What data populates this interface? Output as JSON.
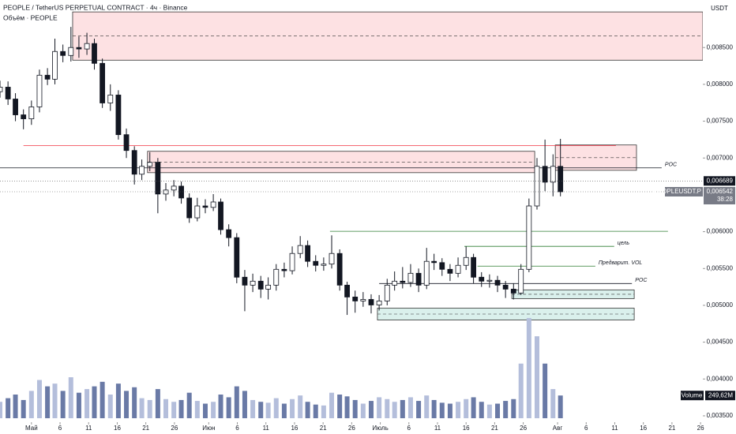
{
  "header": {
    "title": "PEOPLE / TetherUS PERPETUAL CONTRACT · 4ч · Binance",
    "indicator": "Объём · PEOPLE",
    "currency": "USDT"
  },
  "chart_data": {
    "type": "candlestick",
    "x": [
      -5.5,
      -4.1,
      -2.8,
      -1.4,
      0,
      1.4,
      2.8,
      4.1,
      5.5,
      6.9,
      8.3,
      9.7,
      11.0,
      12.4,
      13.8,
      15.2,
      16.6,
      18.0,
      19.3,
      20.7,
      22.1,
      23.5,
      24.9,
      26.2,
      27.6,
      29.0,
      30.4,
      31.8,
      33.1,
      34.5,
      35.9,
      37.3,
      38.7,
      40.1,
      41.4,
      42.8,
      44.2,
      45.6,
      47.0,
      48.3,
      49.7,
      51.1,
      52.5,
      53.9,
      55.2,
      56.6,
      58.0,
      59.4,
      60.8,
      62.2,
      63.5,
      64.9,
      66.3,
      67.7,
      69.1,
      70.4,
      71.8,
      73.2,
      74.6,
      76.0,
      77.3,
      78.7,
      80.1,
      81.5,
      82.9,
      84.3,
      85.6,
      87.0,
      88.4,
      89.8,
      91.2,
      92.5
    ],
    "open": [
      0.0079,
      0.007962,
      0.007801,
      0.007586,
      0.007532,
      0.007694,
      0.008124,
      0.00807,
      0.008446,
      0.008392,
      0.0085,
      0.00848,
      0.008554,
      0.008285,
      0.007747,
      0.007855,
      0.007317,
      0.007102,
      0.00678,
      0.006887,
      0.006941,
      0.006511,
      0.006565,
      0.006618,
      0.006457,
      0.006188,
      0.006349,
      0.00633,
      0.006403,
      0.006027,
      0.005919,
      0.005382,
      0.005274,
      0.005328,
      0.00522,
      0.005274,
      0.005489,
      0.00547,
      0.005704,
      0.005812,
      0.005597,
      0.005543,
      0.00556,
      0.005704,
      0.005274,
      0.005113,
      0.005059,
      0.00508,
      0.005005,
      0.005059,
      0.005274,
      0.005328,
      0.00531,
      0.005435,
      0.005274,
      0.005597,
      0.00558,
      0.005489,
      0.005435,
      0.005543,
      0.00565,
      0.005382,
      0.005328,
      0.00534,
      0.005274,
      0.00522,
      0.005167,
      0.005489,
      0.006349,
      0.006887,
      0.006672,
      0.006887
    ],
    "high": [
      0.00805,
      0.00804,
      0.00788,
      0.00766,
      0.00778,
      0.0082,
      0.00822,
      0.00862,
      0.00854,
      0.00878,
      0.00865,
      0.0087,
      0.00862,
      0.00835,
      0.008,
      0.00792,
      0.0074,
      0.00716,
      0.00698,
      0.00708,
      0.007,
      0.00666,
      0.0067,
      0.00668,
      0.00652,
      0.00646,
      0.00644,
      0.00651,
      0.00645,
      0.0061,
      0.00598,
      0.00548,
      0.00543,
      0.0054,
      0.00538,
      0.00556,
      0.00558,
      0.0058,
      0.00594,
      0.00588,
      0.00568,
      0.00565,
      0.00595,
      0.00576,
      0.00532,
      0.0052,
      0.00518,
      0.00515,
      0.00514,
      0.00536,
      0.00546,
      0.00552,
      0.00556,
      0.0055,
      0.00578,
      0.0057,
      0.00564,
      0.00556,
      0.00565,
      0.0058,
      0.0057,
      0.00545,
      0.00542,
      0.0054,
      0.00533,
      0.0053,
      0.00556,
      0.00645,
      0.007,
      0.00725,
      0.00705,
      0.00726
    ],
    "low": [
      0.00782,
      0.00772,
      0.0075,
      0.00739,
      0.00745,
      0.00762,
      0.00799,
      0.008,
      0.0083,
      0.00831,
      0.00836,
      0.0084,
      0.0082,
      0.00768,
      0.00764,
      0.00725,
      0.007,
      0.00664,
      0.0067,
      0.00682,
      0.00625,
      0.00642,
      0.00648,
      0.00638,
      0.00612,
      0.00614,
      0.00625,
      0.00628,
      0.00596,
      0.0058,
      0.0053,
      0.00492,
      0.00518,
      0.0051,
      0.00508,
      0.0052,
      0.00538,
      0.00542,
      0.00564,
      0.00552,
      0.00546,
      0.00547,
      0.0055,
      0.0052,
      0.00487,
      0.0049,
      0.00498,
      0.00489,
      0.00493,
      0.005,
      0.0052,
      0.00523,
      0.00525,
      0.00518,
      0.00522,
      0.00548,
      0.0054,
      0.00533,
      0.00538,
      0.00548,
      0.0053,
      0.00525,
      0.00524,
      0.00518,
      0.0051,
      0.00508,
      0.00514,
      0.00545,
      0.0063,
      0.00655,
      0.00648,
      0.00648
    ],
    "close": [
      0.007962,
      0.007801,
      0.007586,
      0.007532,
      0.007694,
      0.008124,
      0.00807,
      0.008446,
      0.008392,
      0.0085,
      0.00848,
      0.008554,
      0.008285,
      0.007747,
      0.007855,
      0.007317,
      0.007102,
      0.00678,
      0.006887,
      0.006941,
      0.006511,
      0.006565,
      0.006618,
      0.006457,
      0.006188,
      0.006349,
      0.00633,
      0.006403,
      0.006027,
      0.005919,
      0.005382,
      0.005274,
      0.005328,
      0.00522,
      0.005274,
      0.005489,
      0.00547,
      0.005704,
      0.005812,
      0.005597,
      0.005543,
      0.00556,
      0.005704,
      0.005274,
      0.005113,
      0.005059,
      0.00508,
      0.005005,
      0.005059,
      0.005274,
      0.005328,
      0.00531,
      0.005435,
      0.005274,
      0.005597,
      0.00558,
      0.005489,
      0.005435,
      0.005543,
      0.00565,
      0.005382,
      0.005328,
      0.00534,
      0.005274,
      0.00522,
      0.005167,
      0.005489,
      0.006349,
      0.006887,
      0.006672,
      0.006887,
      0.006542
    ],
    "volume": [
      180,
      220,
      260,
      200,
      300,
      420,
      350,
      380,
      300,
      450,
      280,
      320,
      350,
      400,
      260,
      380,
      300,
      340,
      220,
      200,
      320,
      210,
      180,
      200,
      280,
      190,
      160,
      180,
      260,
      230,
      350,
      300,
      200,
      180,
      170,
      220,
      160,
      210,
      250,
      180,
      150,
      140,
      280,
      260,
      240,
      200,
      160,
      190,
      230,
      210,
      180,
      200,
      230,
      190,
      250,
      200,
      170,
      160,
      180,
      210,
      230,
      180,
      150,
      160,
      190,
      210,
      600,
      1100,
      900,
      600,
      320,
      249.62
    ],
    "volume_readout": {
      "name": "Volume",
      "value_label": "249,62M"
    },
    "up_color": "#ffffff",
    "down_color": "#131722",
    "volume_up_color": "#b4bedb",
    "volume_down_color": "#6a7aa6",
    "xlim": [
      -5.5,
      117.4
    ],
    "xticks": [
      {
        "value": 0,
        "label": "Май"
      },
      {
        "value": 5,
        "label": "6"
      },
      {
        "value": 10,
        "label": "11"
      },
      {
        "value": 15,
        "label": "16"
      },
      {
        "value": 20,
        "label": "21"
      },
      {
        "value": 25,
        "label": "26"
      },
      {
        "value": 31,
        "label": "Июн"
      },
      {
        "value": 36,
        "label": "6"
      },
      {
        "value": 41,
        "label": "11"
      },
      {
        "value": 46,
        "label": "16"
      },
      {
        "value": 51,
        "label": "21"
      },
      {
        "value": 56,
        "label": "26"
      },
      {
        "value": 61,
        "label": "Июль"
      },
      {
        "value": 66,
        "label": "6"
      },
      {
        "value": 71,
        "label": "11"
      },
      {
        "value": 76,
        "label": "16"
      },
      {
        "value": 81,
        "label": "21"
      },
      {
        "value": 86,
        "label": "26"
      },
      {
        "value": 92,
        "label": "Авг"
      },
      {
        "value": 97,
        "label": "6"
      },
      {
        "value": 102,
        "label": "11"
      },
      {
        "value": 107,
        "label": "16"
      },
      {
        "value": 112,
        "label": "21"
      },
      {
        "value": 117,
        "label": "26"
      }
    ],
    "ylim": [
      0.003414,
      0.009145
    ],
    "yticks": [
      {
        "value": 0.0085,
        "label": "0,008500"
      },
      {
        "value": 0.008,
        "label": "0,008000"
      },
      {
        "value": 0.0075,
        "label": "0,007500"
      },
      {
        "value": 0.007,
        "label": "0,007000"
      },
      {
        "value": 0.006,
        "label": "0,006000"
      },
      {
        "value": 0.0055,
        "label": "0,005500"
      },
      {
        "value": 0.005,
        "label": "0,005000"
      },
      {
        "value": 0.0045,
        "label": "0,004500"
      },
      {
        "value": 0.004,
        "label": "0,004000"
      },
      {
        "value": 0.0035,
        "label": "0,003500"
      }
    ],
    "volume_ylim": [
      0,
      1300
    ],
    "price_marks": [
      {
        "value": 0.006689,
        "label": "0,006689"
      },
      {
        "value": 0.006542,
        "label": "0,006542",
        "symbol": "PEOPLEUSDT.P",
        "countdown": "38:28"
      }
    ],
    "zones": [
      {
        "x": [
          7.2,
          117.4
        ],
        "y": [
          0.008328,
          0.008983
        ],
        "color": "#f23645"
      },
      {
        "x": [
          20.3,
          88.0
        ],
        "y": [
          0.006801,
          0.007091
        ],
        "color": "#f23645"
      },
      {
        "x": [
          91.6,
          105.8
        ],
        "y": [
          0.006833,
          0.007177
        ],
        "color": "#f23645"
      },
      {
        "x": [
          84.0,
          105.4
        ],
        "y": [
          0.005091,
          0.00521
        ],
        "color": "#089981"
      },
      {
        "x": [
          60.5,
          105.4
        ],
        "y": [
          0.004801,
          0.004962
        ],
        "color": "#089981"
      }
    ],
    "levels": [
      {
        "x": [
          -5.5,
          110.2
        ],
        "value": 0.006866,
        "color": "#131722",
        "label": "POC"
      },
      {
        "x": [
          52.2,
          111.3
        ],
        "value": 0.006005,
        "color": "#2e7d32"
      },
      {
        "x": [
          75.7,
          101.9
        ],
        "value": 0.005801,
        "color": "#2e7d32",
        "label": "цель"
      },
      {
        "x": [
          78.0,
          98.6
        ],
        "value": 0.005532,
        "color": "#2e7d32",
        "label": "Предварит. VOL"
      },
      {
        "x": [
          60.8,
          105.0
        ],
        "value": 0.005296,
        "color": "#131722",
        "label": "POC"
      },
      {
        "x": [
          -1.4,
          102.2
        ],
        "value": 0.007167,
        "color": "#f23645"
      }
    ]
  }
}
